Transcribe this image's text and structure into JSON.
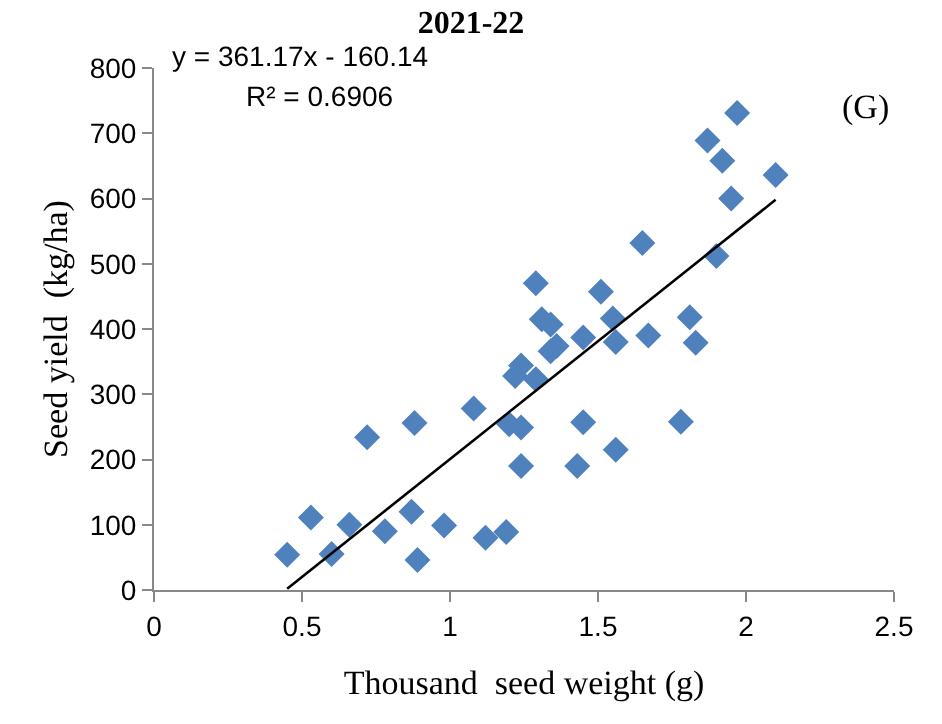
{
  "chart_data": {
    "type": "scatter",
    "title": "2021-22",
    "xlabel": "Thousand  seed weight (g)",
    "ylabel": "Seed yield  (kg/ha)",
    "annotations": [
      "y = 361.17x - 160.14",
      "R² = 0.6906",
      "(G)"
    ],
    "xlim": [
      0,
      2.5
    ],
    "xticks": [
      0,
      0.5,
      1,
      1.5,
      2,
      2.5
    ],
    "ylim": [
      0,
      800
    ],
    "yticks": [
      0,
      100,
      200,
      300,
      400,
      500,
      600,
      700,
      800
    ],
    "marker": "diamond",
    "series": [
      {
        "color": "#4f81bd",
        "x": [
          0.45,
          0.53,
          0.6,
          0.66,
          0.72,
          0.78,
          0.87,
          0.88,
          0.89,
          0.98,
          1.08,
          1.12,
          1.19,
          1.97,
          1.87,
          1.92,
          2.1,
          1.95,
          1.65,
          1.9,
          1.29,
          1.51,
          1.31,
          1.34,
          1.55,
          1.81,
          1.45,
          1.67,
          1.56,
          1.83,
          1.36,
          1.34,
          1.24,
          1.22,
          1.29,
          1.2,
          1.24,
          1.45,
          1.78,
          1.56,
          1.24,
          1.43
        ],
        "values": [
          54,
          111,
          55,
          100,
          234,
          90,
          120,
          256,
          46,
          99,
          278,
          80,
          89,
          731,
          689,
          658,
          636,
          600,
          532,
          512,
          470,
          457,
          415,
          407,
          416,
          418,
          387,
          390,
          380,
          379,
          374,
          366,
          344,
          328,
          323,
          254,
          249,
          257,
          258,
          215,
          190,
          190
        ]
      },
      {
        "type": "line",
        "color": "#000000",
        "marker": "none",
        "x": [
          0.45,
          2.1
        ],
        "values": [
          2,
          598
        ]
      }
    ]
  }
}
